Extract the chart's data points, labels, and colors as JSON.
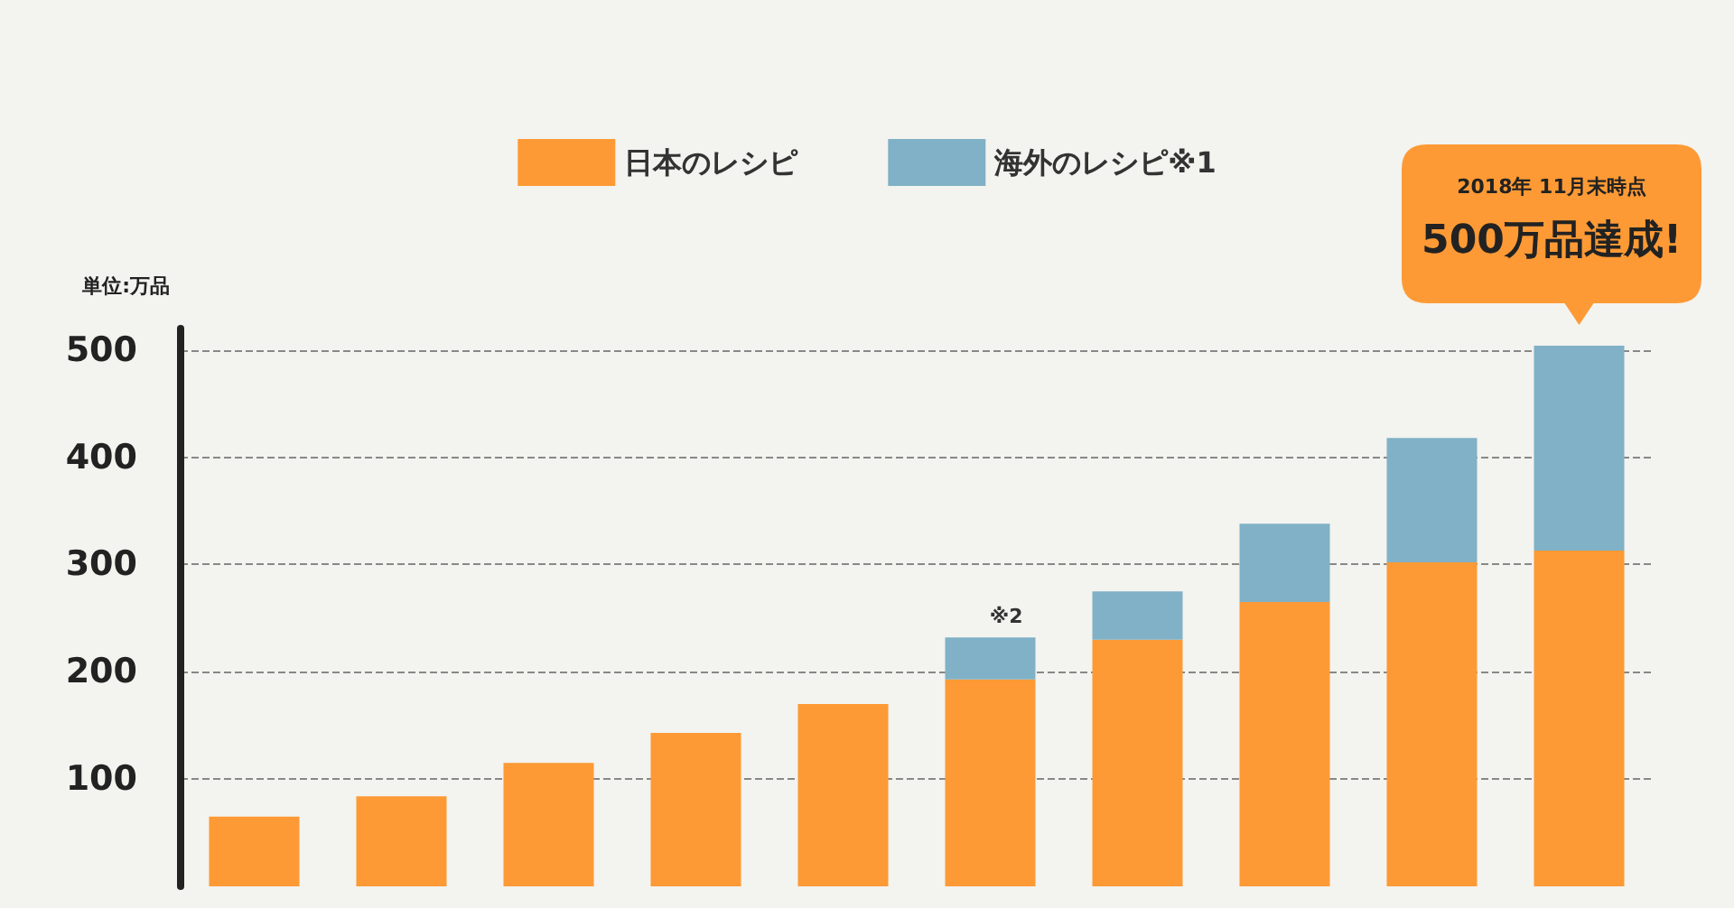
{
  "chart_data": {
    "type": "bar",
    "stacked": true,
    "categories": [
      null,
      null,
      null,
      null,
      null,
      null,
      null,
      null,
      null,
      null
    ],
    "series": [
      {
        "name": "日本のレシピ",
        "color": "#fd9a35",
        "values": [
          65,
          84,
          115,
          143,
          170,
          193,
          230,
          265,
          302,
          313
        ]
      },
      {
        "name": "海外のレシピ※1",
        "color": "#80b1c6",
        "values": [
          null,
          null,
          null,
          null,
          null,
          39,
          45,
          73,
          116,
          191
        ]
      }
    ],
    "ylabel": "単位:万品",
    "ylim": [
      0,
      520
    ],
    "yticks": [
      100,
      200,
      300,
      400,
      500
    ],
    "grid": "y",
    "legend": "top",
    "annotations": [
      {
        "text": "※2",
        "y": 232
      },
      "2018年 11月末時点",
      "500万品達成!"
    ]
  }
}
